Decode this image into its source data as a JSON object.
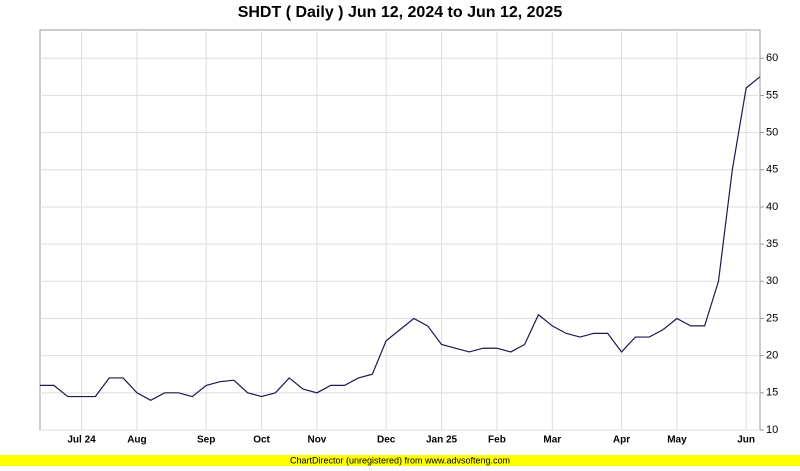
{
  "chart_data": {
    "type": "line",
    "title": "SHDT ( Daily ) Jun 12, 2024 to Jun 12, 2025",
    "footer": "ChartDirector (unregistered) from www.advsofteng.com",
    "categories": [
      null,
      null,
      null,
      "Jul 24",
      null,
      null,
      null,
      "Aug",
      null,
      null,
      null,
      null,
      "Sep",
      null,
      null,
      null,
      "Oct",
      null,
      null,
      null,
      "Nov",
      null,
      null,
      null,
      null,
      "Dec",
      null,
      null,
      null,
      "Jan 25",
      null,
      null,
      null,
      "Feb",
      null,
      null,
      null,
      "Mar",
      null,
      null,
      null,
      null,
      "Apr",
      null,
      null,
      null,
      "May",
      null,
      null,
      null,
      null,
      "Jun",
      null
    ],
    "values": [
      16,
      16,
      14.5,
      14.5,
      14.5,
      17,
      17,
      15,
      14,
      15,
      15,
      14.5,
      16,
      16.5,
      16.7,
      15,
      14.5,
      15,
      17,
      15.5,
      15,
      16,
      16,
      17,
      17.5,
      22,
      23.5,
      25,
      24,
      21.5,
      21,
      20.5,
      21,
      21,
      20.5,
      21.5,
      25.5,
      24,
      23,
      22.5,
      23,
      23,
      20.5,
      22.5,
      22.5,
      23.5,
      25,
      24,
      24,
      30,
      45,
      56,
      57.5
    ],
    "color": "#1a1a4e",
    "ylim": [
      10,
      63.8
    ],
    "yticks": [
      10,
      15,
      20,
      25,
      30,
      35,
      40,
      45,
      50,
      55,
      60
    ],
    "grid": true
  }
}
